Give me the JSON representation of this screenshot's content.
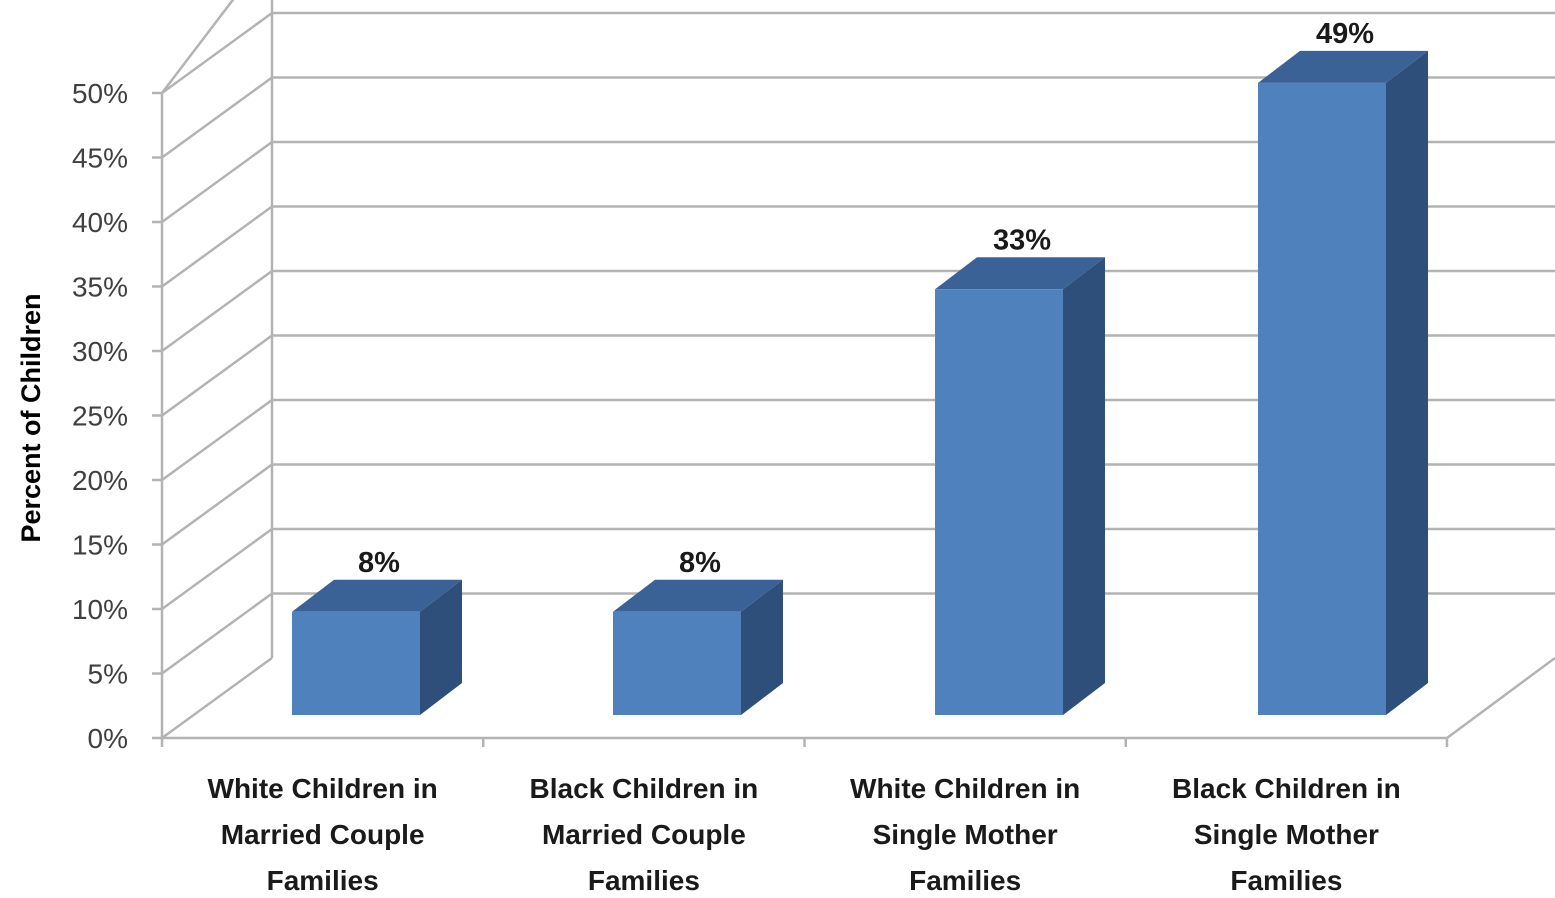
{
  "chart_data": {
    "type": "bar",
    "title": "",
    "xlabel": "",
    "ylabel": "Percent of Children",
    "categories": [
      [
        "White Children in",
        "Married Couple",
        "Families"
      ],
      [
        "Black Children in",
        "Married Couple",
        "Families"
      ],
      [
        "White Children in",
        "Single Mother",
        "Families"
      ],
      [
        "Black Children in",
        "Single Mother",
        "Families"
      ]
    ],
    "values": [
      8,
      8,
      33,
      49
    ],
    "data_labels": [
      "8%",
      "8%",
      "33%",
      "49%"
    ],
    "ylim": [
      0,
      50
    ],
    "yticks": [
      "0%",
      "5%",
      "10%",
      "15%",
      "20%",
      "25%",
      "30%",
      "35%",
      "40%",
      "45%",
      "50%"
    ],
    "grid": true,
    "legend": "none",
    "style": "3d-column",
    "colors": {
      "front": "#4f81bd",
      "top": "#3b6296",
      "side": "#2e4f7a",
      "grid": "#b3b3b3"
    }
  }
}
